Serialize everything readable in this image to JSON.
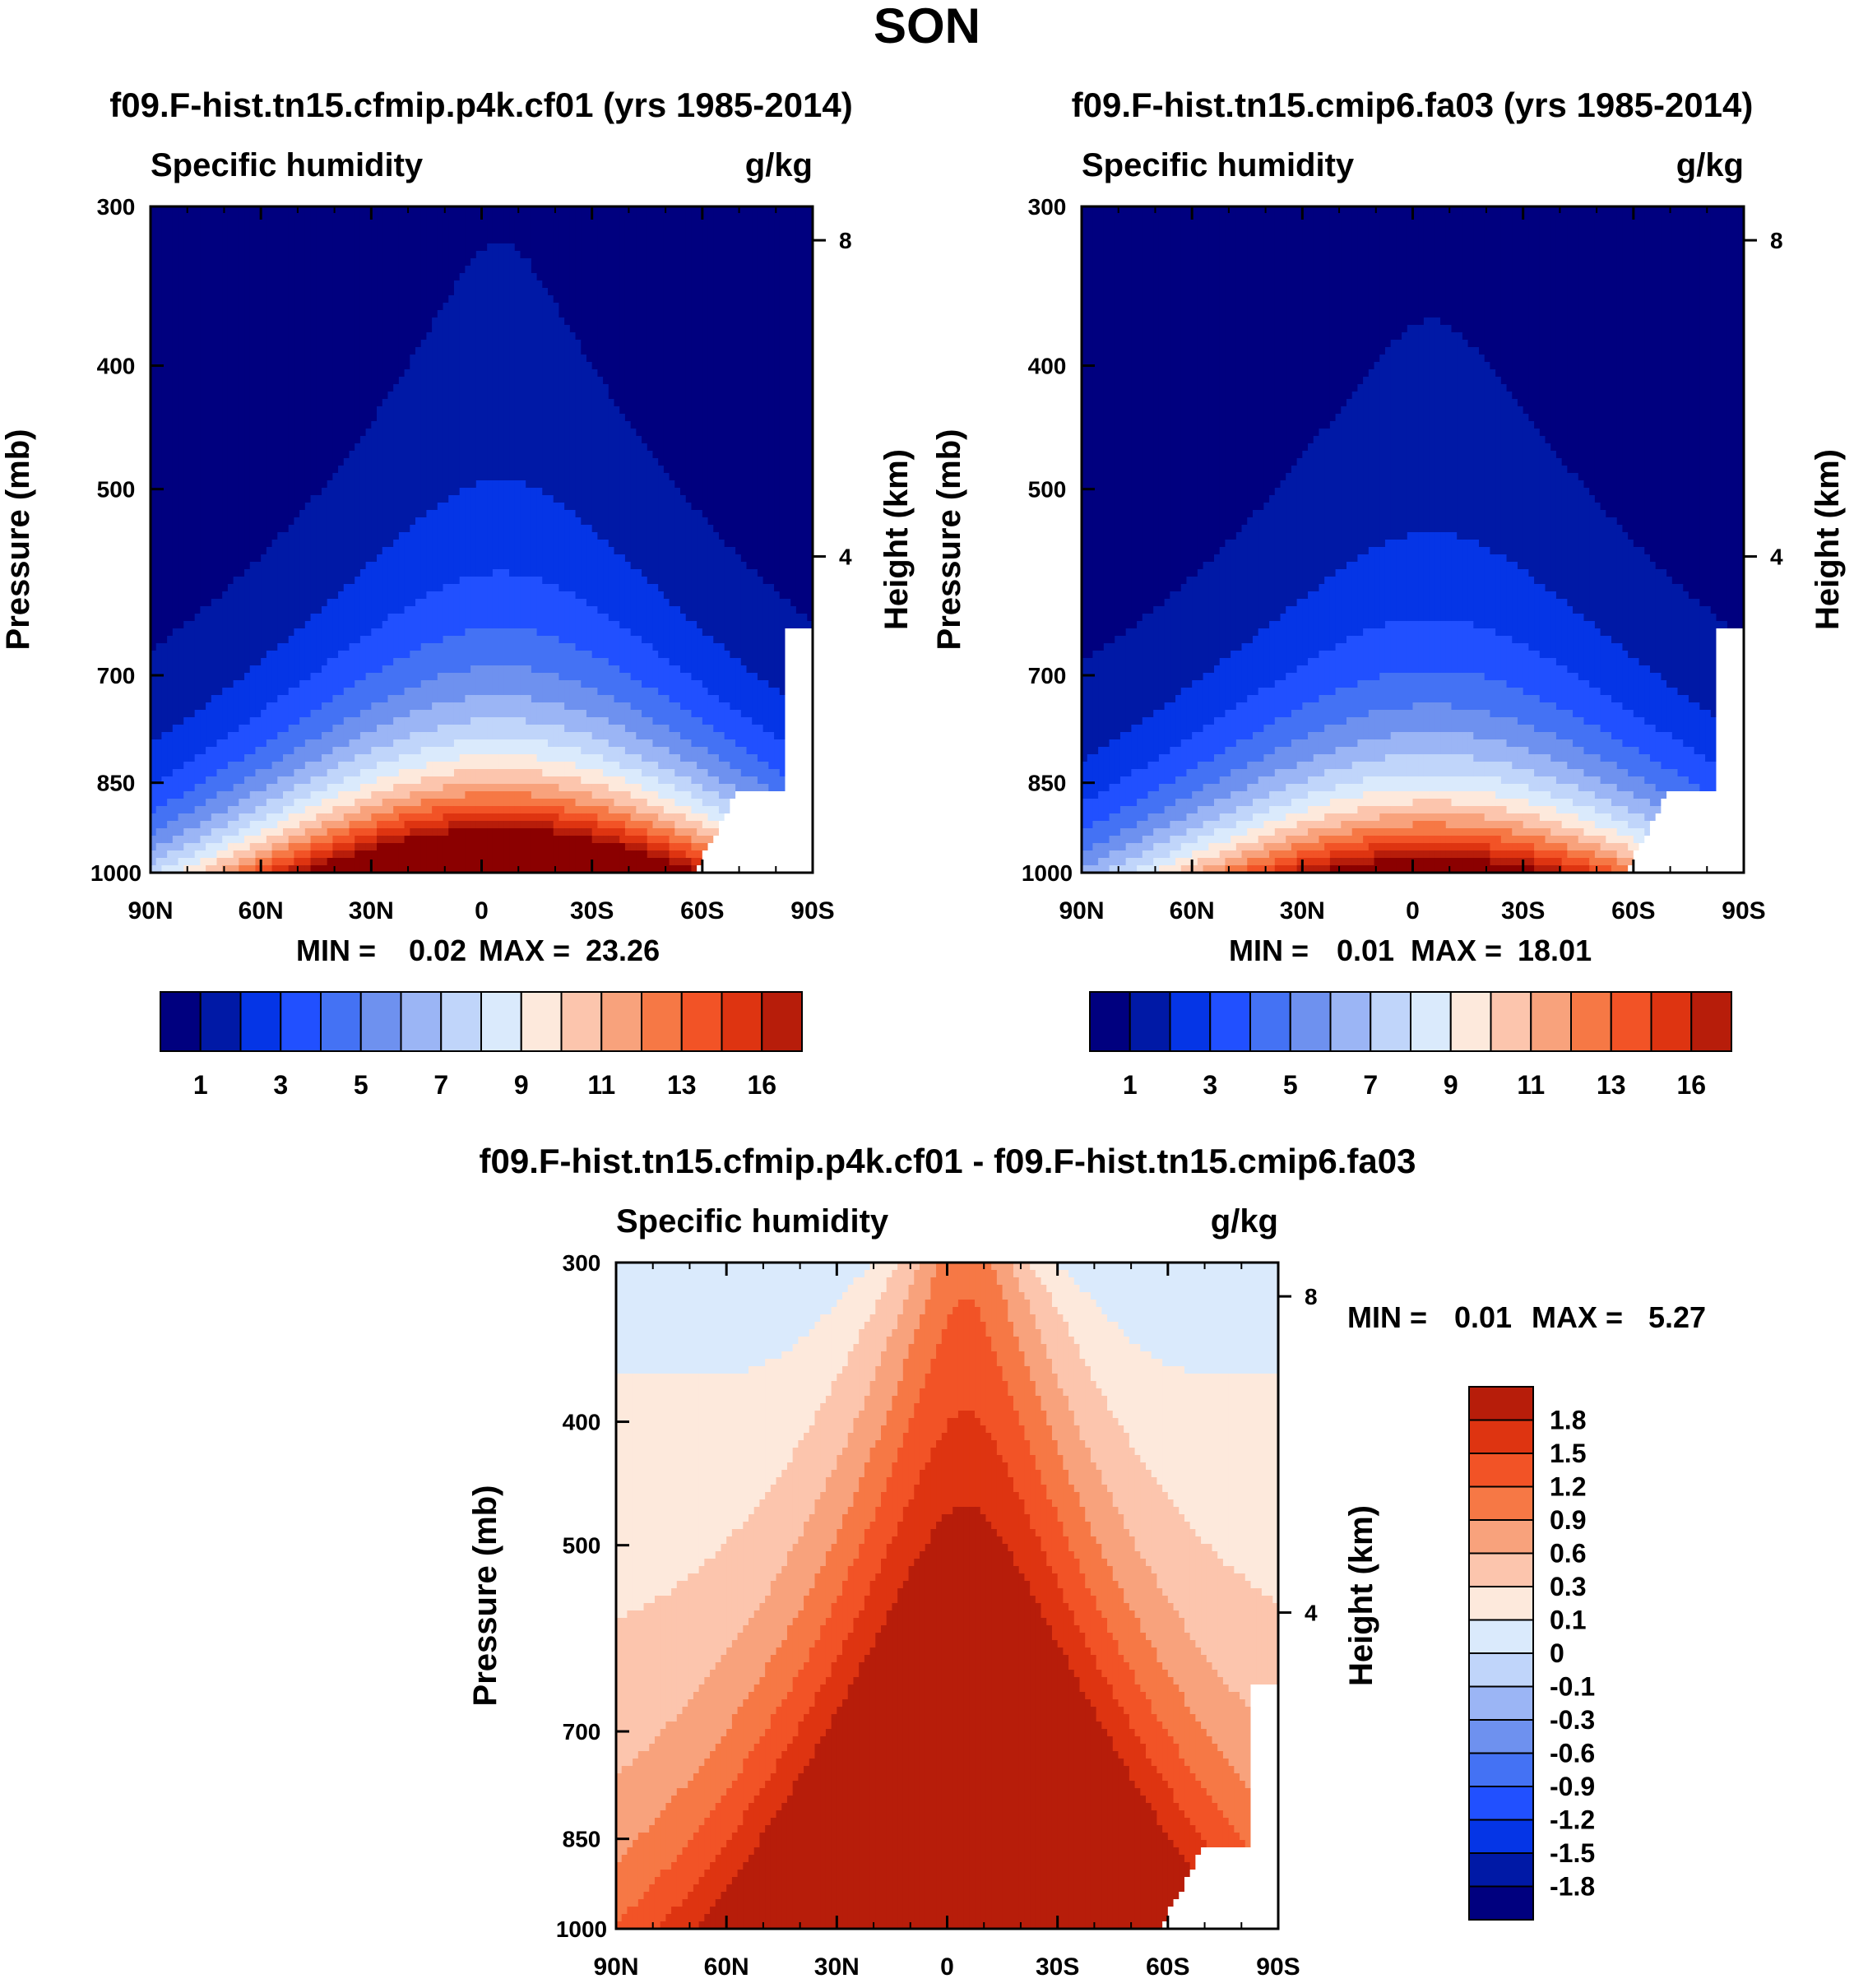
{
  "figure": {
    "title": "SON"
  },
  "colors": {
    "abs_scale": [
      "#00007f",
      "#0019a6",
      "#0535e6",
      "#2150ff",
      "#4472f4",
      "#6e91ef",
      "#9bb5f5",
      "#c0d5fa",
      "#daeafc",
      "#fde9dc",
      "#fcc5ad",
      "#f8a27c",
      "#f67845",
      "#f25326",
      "#de3411",
      "#b71d0a",
      "#8b0000"
    ],
    "diff_scale": [
      "#00007f",
      "#0019a6",
      "#0535e6",
      "#2150ff",
      "#4472f4",
      "#6e91ef",
      "#9bb5f5",
      "#c0d5fa",
      "#daeafc",
      "#fde9dc",
      "#fcc5ad",
      "#f8a27c",
      "#f67845",
      "#f25326",
      "#de3411",
      "#b71d0a",
      "#8b0000"
    ]
  },
  "chart_data": [
    {
      "id": "panel-1",
      "type": "heatmap",
      "title": "f09.F-hist.tn15.cfmip.p4k.cf01 (yrs 1985-2014)",
      "subtitle_left": "Specific humidity",
      "subtitle_right": "g/kg",
      "ylabel": "Pressure (mb)",
      "y2label": "Height (km)",
      "xticks": [
        "90N",
        "60N",
        "30N",
        "0",
        "30S",
        "60S",
        "90S"
      ],
      "xlim": [
        90,
        -90
      ],
      "yticks": [
        300,
        400,
        500,
        700,
        850,
        1000
      ],
      "ylim": [
        300,
        1000
      ],
      "y2ticks": [
        8,
        4
      ],
      "stats": {
        "min_label": "MIN =",
        "min": "0.02",
        "max_label": "MAX =",
        "max": "23.26"
      },
      "colorbar_labels": [
        "1",
        "3",
        "5",
        "7",
        "9",
        "11",
        "13",
        "16"
      ],
      "field": {
        "peak_lat": -5,
        "peak_value": 23.26,
        "min_value": 0.02
      }
    },
    {
      "id": "panel-2",
      "type": "heatmap",
      "title": "f09.F-hist.tn15.cmip6.fa03 (yrs 1985-2014)",
      "subtitle_left": "Specific humidity",
      "subtitle_right": "g/kg",
      "ylabel": "Pressure (mb)",
      "y2label": "Height (km)",
      "xticks": [
        "90N",
        "60N",
        "30N",
        "0",
        "30S",
        "60S",
        "90S"
      ],
      "xlim": [
        90,
        -90
      ],
      "yticks": [
        300,
        400,
        500,
        700,
        850,
        1000
      ],
      "ylim": [
        300,
        1000
      ],
      "y2ticks": [
        8,
        4
      ],
      "stats": {
        "min_label": "MIN =",
        "min": "0.01",
        "max_label": "MAX =",
        "max": "18.01"
      },
      "colorbar_labels": [
        "1",
        "3",
        "5",
        "7",
        "9",
        "11",
        "13",
        "16"
      ],
      "field": {
        "peak_lat": -5,
        "peak_value": 18.01,
        "min_value": 0.01
      }
    },
    {
      "id": "panel-3",
      "type": "heatmap",
      "title": "f09.F-hist.tn15.cfmip.p4k.cf01 - f09.F-hist.tn15.cmip6.fa03",
      "subtitle_left": "Specific humidity",
      "subtitle_right": "g/kg",
      "ylabel": "Pressure (mb)",
      "y2label": "Height (km)",
      "xticks": [
        "90N",
        "60N",
        "30N",
        "0",
        "30S",
        "60S",
        "90S"
      ],
      "xlim": [
        90,
        -90
      ],
      "yticks": [
        300,
        400,
        500,
        700,
        850,
        1000
      ],
      "ylim": [
        300,
        1000
      ],
      "y2ticks": [
        8,
        4
      ],
      "stats": {
        "min_label": "MIN =",
        "min": "0.01",
        "max_label": "MAX =",
        "max": "5.27"
      },
      "colorbar_labels": [
        "1.8",
        "1.5",
        "1.2",
        "0.9",
        "0.6",
        "0.3",
        "0.1",
        "0",
        "-0.1",
        "-0.3",
        "-0.6",
        "-0.9",
        "-1.2",
        "-1.5",
        "-1.8"
      ],
      "field": {
        "peak_lat": -5,
        "peak_value": 5.27,
        "min_value": 0.01
      }
    }
  ]
}
